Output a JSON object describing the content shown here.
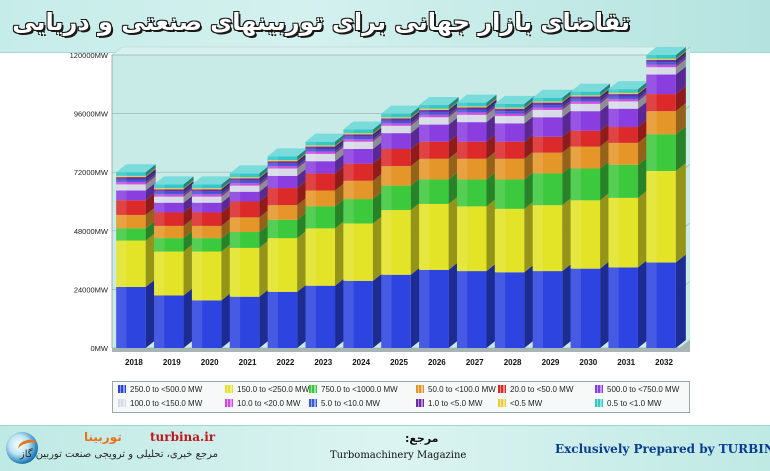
{
  "title": "تقاضای بازار جهانی برای توربینهای صنعتی و دریایی",
  "chart_data": {
    "type": "bar",
    "stacked": true,
    "title": "تقاضای بازار جهانی برای توربینهای صنعتی و دریایی",
    "xlabel": "",
    "ylabel": "",
    "ylim": [
      0,
      120000
    ],
    "y_ticks": [
      0,
      24000,
      48000,
      72000,
      96000,
      120000
    ],
    "y_tick_labels": [
      "0MW",
      "24000MW",
      "48000MW",
      "72000MW",
      "96000MW",
      "120000MW"
    ],
    "categories": [
      "2018",
      "2019",
      "2020",
      "2021",
      "2022",
      "2023",
      "2024",
      "2025",
      "2026",
      "2027",
      "2028",
      "2029",
      "2030",
      "2031",
      "2032"
    ],
    "legend_position": "bottom",
    "series": [
      {
        "name": "250.0 to <500.0 MW",
        "color": "#2d44e0",
        "values": [
          25000,
          21500,
          19500,
          21000,
          23000,
          25500,
          27500,
          30000,
          32000,
          31500,
          31000,
          31500,
          32500,
          33000,
          35000
        ]
      },
      {
        "name": "150.0 to <250.0 MW",
        "color": "#e3e327",
        "values": [
          19000,
          18000,
          20000,
          20000,
          22000,
          23500,
          23500,
          26500,
          27000,
          26500,
          26000,
          27000,
          28000,
          28500,
          37500
        ]
      },
      {
        "name": "750.0 to <1000.0 MW",
        "color": "#3dc93d",
        "values": [
          5000,
          5500,
          5500,
          6500,
          7500,
          9000,
          10000,
          10000,
          10000,
          11000,
          12000,
          13000,
          13000,
          13500,
          15000
        ]
      },
      {
        "name": "50.0 to <100.0 MW",
        "color": "#e59628",
        "values": [
          5500,
          5000,
          5000,
          6000,
          6000,
          6500,
          7500,
          8000,
          8500,
          8500,
          8500,
          8500,
          9000,
          9000,
          9500
        ]
      },
      {
        "name": "20.0 to <50.0 MW",
        "color": "#dc2a2a",
        "values": [
          6000,
          5500,
          5500,
          6500,
          7000,
          7000,
          7000,
          7000,
          7000,
          7000,
          7000,
          6500,
          6500,
          6500,
          7000
        ]
      },
      {
        "name": "500.0 to <750.0 MW",
        "color": "#8a3ee0",
        "values": [
          4000,
          4000,
          4000,
          4000,
          5000,
          5000,
          6000,
          6500,
          7000,
          8000,
          7500,
          8000,
          8000,
          7500,
          8000
        ]
      },
      {
        "name": "100.0 to <150.0 MW",
        "color": "#d7dbe6",
        "values": [
          2500,
          2500,
          2500,
          2500,
          3000,
          3000,
          3000,
          3000,
          3000,
          3000,
          3000,
          3000,
          3000,
          3000,
          3000
        ]
      },
      {
        "name": "10.0 to <20.0 MW",
        "color": "#d24be0",
        "values": [
          1000,
          1000,
          1000,
          1000,
          1000,
          1000,
          1000,
          1000,
          1000,
          1000,
          1000,
          1000,
          1000,
          1000,
          1000
        ]
      },
      {
        "name": "5.0 to <10.0 MW",
        "color": "#3a5bd8",
        "values": [
          1000,
          1000,
          1000,
          1000,
          1000,
          1000,
          1000,
          1000,
          1000,
          1000,
          1000,
          1000,
          1000,
          1000,
          1000
        ]
      },
      {
        "name": "1.0 to <5.0 MW",
        "color": "#6c2aa6",
        "values": [
          1000,
          1000,
          1000,
          1000,
          1000,
          1000,
          1000,
          1000,
          1000,
          1000,
          1000,
          1000,
          1000,
          1000,
          1000
        ]
      },
      {
        "name": "<0.5 MW",
        "color": "#e8cf3a",
        "values": [
          500,
          500,
          500,
          500,
          500,
          500,
          500,
          500,
          500,
          500,
          500,
          500,
          500,
          500,
          500
        ]
      },
      {
        "name": "0.5 to <1.0 MW",
        "color": "#33c8c8",
        "values": [
          1500,
          1500,
          1500,
          1500,
          1500,
          1500,
          1500,
          1500,
          1500,
          1500,
          1500,
          1500,
          1500,
          1500,
          1500
        ]
      }
    ]
  },
  "footer": {
    "brand_name": "توربینا",
    "brand_site": "turbina.ir",
    "brand_desc": "مرجع خبری، تحلیلی و ترویجی صنعت توربین گاز",
    "source_label": "مرجع:",
    "source_name": "Turbomachinery Magazine",
    "credit": "Exclusively Prepared by TURBINA.IR"
  },
  "colors": {
    "plot_bg": "#c8ebe7",
    "grid": "#9fb6b6",
    "footer_text": "#0a3d91",
    "site_red": "#c0141c",
    "brand_orange": "#e8731c"
  }
}
